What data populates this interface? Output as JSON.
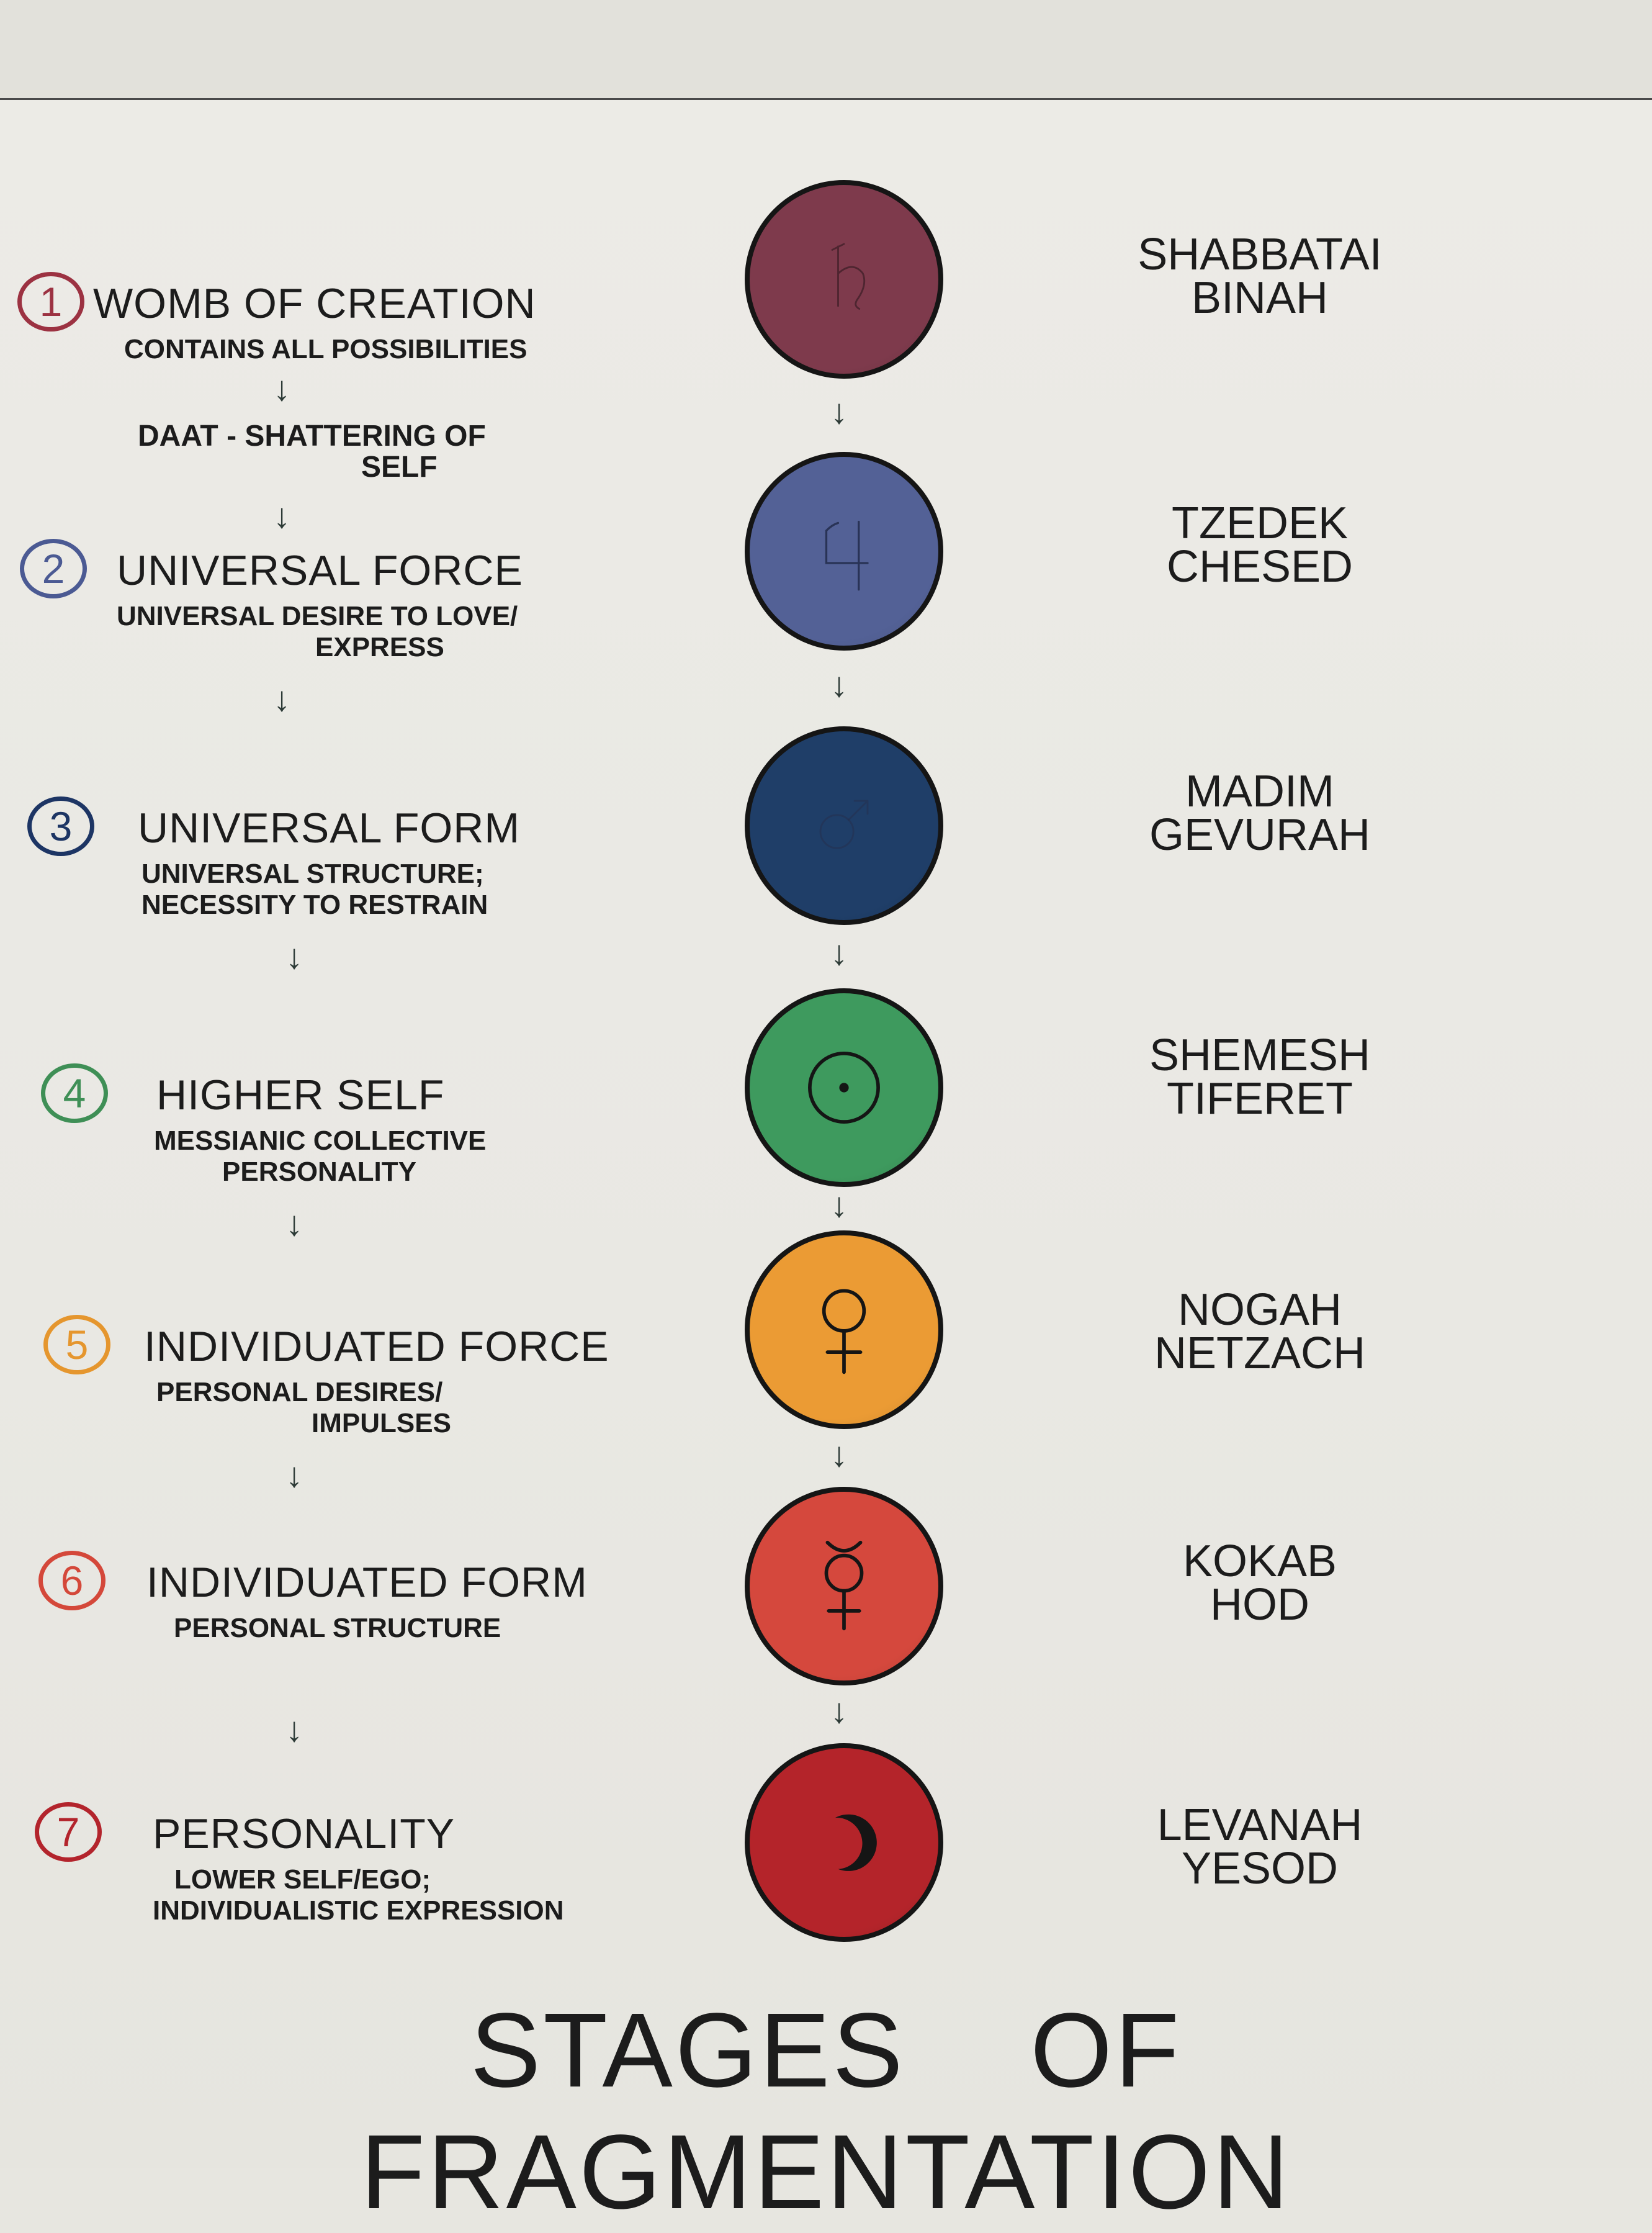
{
  "title": "STAGES OF FRAGMENTATION",
  "stages": [
    {
      "number": "1",
      "number_color": "#9c3242",
      "title": "WOMB OF CREATION",
      "desc": [
        "CONTAINS ALL POSSIBILITIES"
      ],
      "extra": [
        "DAAT - SHATTERING OF",
        "SELF"
      ],
      "sphere_color": "#7e3a4c",
      "symbol": "saturn-icon",
      "symbol_glyph": "♄",
      "names": [
        "SHABBATAI",
        "BINAH"
      ]
    },
    {
      "number": "2",
      "number_color": "#4b5a93",
      "title": "UNIVERSAL FORCE",
      "desc": [
        "UNIVERSAL DESIRE TO LOVE/",
        "EXPRESS"
      ],
      "sphere_color": "#536196",
      "symbol": "jupiter-icon",
      "symbol_glyph": "♃",
      "names": [
        "TZEDEK",
        "CHESED"
      ]
    },
    {
      "number": "3",
      "number_color": "#1d3564",
      "title": "UNIVERSAL FORM",
      "desc": [
        "UNIVERSAL STRUCTURE;",
        "NECESSITY TO RESTRAIN"
      ],
      "sphere_color": "#1f3e68",
      "symbol": "mars-icon",
      "symbol_glyph": "♂",
      "names": [
        "MADIM",
        "GEVURAH"
      ]
    },
    {
      "number": "4",
      "number_color": "#3f8f56",
      "title": "HIGHER SELF",
      "desc": [
        "MESSIANIC COLLECTIVE",
        "PERSONALITY"
      ],
      "sphere_color": "#3e9a5e",
      "symbol": "sun-icon",
      "symbol_glyph": "☉",
      "names": [
        "SHEMESH",
        "TIFERET"
      ]
    },
    {
      "number": "5",
      "number_color": "#e5962e",
      "title": "INDIVIDUATED FORCE",
      "desc": [
        "PERSONAL DESIRES/",
        "IMPULSES"
      ],
      "sphere_color": "#eb9b34",
      "symbol": "venus-icon",
      "symbol_glyph": "♀",
      "names": [
        "NOGAH",
        "NETZACH"
      ]
    },
    {
      "number": "6",
      "number_color": "#d4483a",
      "title": "INDIVIDUATED FORM",
      "desc": [
        "PERSONAL STRUCTURE"
      ],
      "sphere_color": "#d5483d",
      "symbol": "mercury-icon",
      "symbol_glyph": "☿",
      "names": [
        "KOKAB",
        "HOD"
      ]
    },
    {
      "number": "7",
      "number_color": "#b3242c",
      "title": "PERSONALITY",
      "desc": [
        "LOWER SELF/EGO;",
        "INDIVIDUALISTIC EXPRESSION"
      ],
      "sphere_color": "#b4242a",
      "symbol": "moon-icon",
      "symbol_glyph": "☽",
      "names": [
        "LEVANAH",
        "YESOD"
      ]
    }
  ]
}
